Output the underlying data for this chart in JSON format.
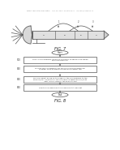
{
  "background_color": "#ffffff",
  "header_text": "Patent Application Publication    Aug. 23, 2011  Sheet 5 of 10    US 2011/0200822 A1",
  "fig7_label": "FIG. 7",
  "fig8_label": "FIG. 8",
  "fig8_start_label": "Start",
  "fig8_end_label": "End",
  "fig8_boxes": [
    "Select a VIG assembly including a plurality of edges to be sealed\nwith a sealant tool",
    "Position the VIG assembly for use in a local environmental\nchamber to at an effective area of the sealant tool",
    "Provide sealant based on the edges of the VIG assembly to the\nsealant (e.g., using one or more tunable IR edge sources) to at\nleast reliably bond of the sealant seals",
    "Cool the VIG assembly to an end point at low heat"
  ],
  "fig8_box_labels": [
    "S10",
    "S20",
    "S30",
    "S40"
  ],
  "line_color": "#555555",
  "text_color": "#333333",
  "box_fill": "#ffffff",
  "box_edge": "#555555",
  "arrow_color": "#555555",
  "header_color": "#888888"
}
